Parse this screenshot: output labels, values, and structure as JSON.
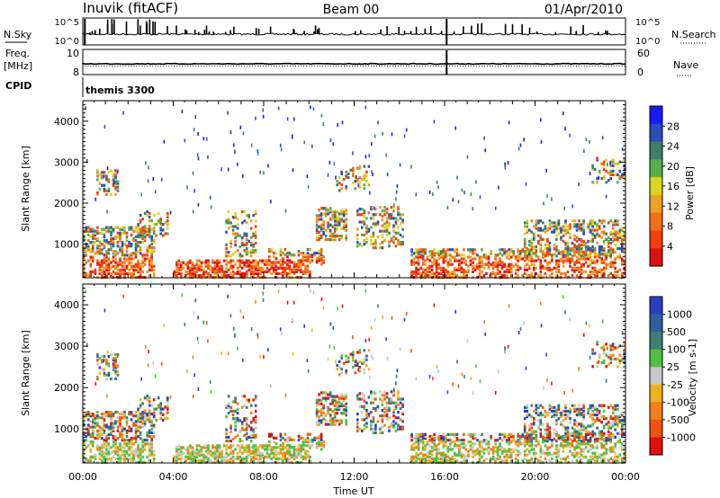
{
  "header": {
    "station": "Inuvik (fitACF)",
    "beam": "Beam 00",
    "date": "01/Apr/2010"
  },
  "colors": {
    "power_scale": [
      "#1a1aff",
      "#2a4fb8",
      "#3d7f6e",
      "#56b04a",
      "#d8d820",
      "#f0a020",
      "#f07018",
      "#f04010",
      "#e01010"
    ],
    "velocity_scale": [
      "#2a3fc0",
      "#2f5fa0",
      "#3a7f70",
      "#50c040",
      "#c8c8c8",
      "#f0b020",
      "#f08018",
      "#f05010",
      "#e01010"
    ]
  },
  "chart_data": [
    {
      "type": "line",
      "name_label": "N.Sky",
      "right_label": "N.Search",
      "left_ticks": [
        "10^5",
        "10^0"
      ],
      "right_ticks": [
        "10^5",
        "10^0"
      ]
    },
    {
      "type": "line",
      "name_label": "Freq.",
      "unit_label": "[MHz]",
      "left_ticks": [
        "10",
        "8"
      ],
      "right_label": "Nave",
      "right_ticks": [
        "60",
        "0"
      ]
    },
    {
      "type": "table",
      "name_label": "CPID",
      "value": "themis 3300"
    },
    {
      "type": "heatmap",
      "ylabel": "Slant Range [km]",
      "yticks": [
        1000,
        2000,
        3000,
        4000
      ],
      "ylim": [
        180,
        4500
      ],
      "colorbar_label": "Power [dB]",
      "colorbar_ticks": [
        "28",
        "24",
        "20",
        "16",
        "12",
        "8",
        "4"
      ]
    },
    {
      "type": "heatmap",
      "ylabel": "Slant Range [km]",
      "yticks": [
        1000,
        2000,
        3000,
        4000
      ],
      "ylim": [
        180,
        4500
      ],
      "colorbar_label": "Velocity [m s-1]",
      "colorbar_ticks": [
        "1000",
        "500",
        "100",
        "25",
        "-25",
        "-100",
        "-500",
        "-1000"
      ]
    }
  ],
  "time_axis": {
    "xlabel": "Time UT",
    "ticks": [
      "00:00",
      "04:00",
      "08:00",
      "12:00",
      "16:00",
      "20:00",
      "00:00"
    ],
    "xlim_hours": [
      0,
      24
    ]
  }
}
